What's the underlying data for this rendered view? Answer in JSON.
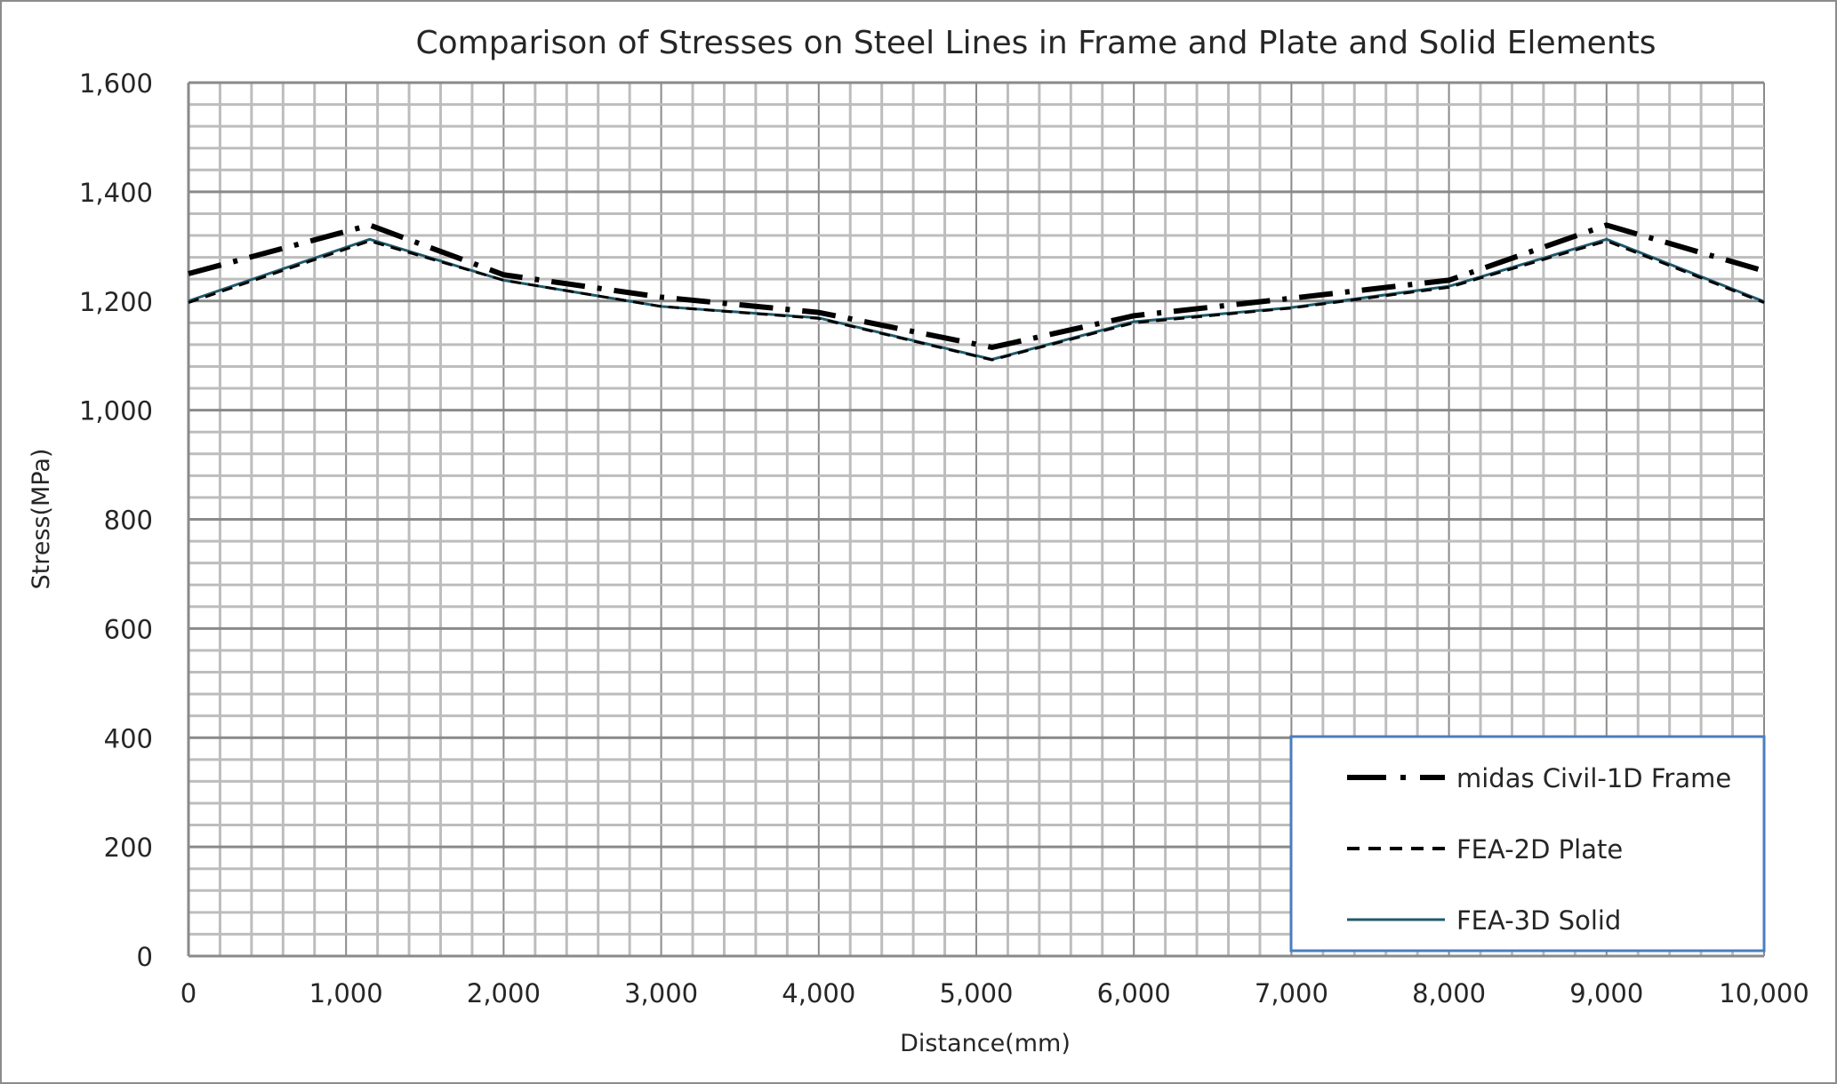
{
  "chart_data": {
    "type": "line",
    "title": "Comparison of Stresses on Steel Lines in Frame and Plate and Solid Elements",
    "xlabel": "Distance(mm)",
    "ylabel": "Stress(MPa)",
    "xlim": [
      0,
      10000
    ],
    "ylim": [
      0,
      1600
    ],
    "xticks": [
      "0",
      "1,000",
      "2,000",
      "3,000",
      "4,000",
      "5,000",
      "6,000",
      "7,000",
      "8,000",
      "9,000",
      "10,000"
    ],
    "yticks": [
      "0",
      "200",
      "400",
      "600",
      "800",
      "1,000",
      "1,200",
      "1,400",
      "1,600"
    ],
    "grid": true,
    "legend_placement": "bottom-right",
    "x": [
      0,
      1150,
      2000,
      3000,
      4000,
      5100,
      6000,
      7000,
      8000,
      9000,
      10000
    ],
    "series": [
      {
        "name": "midas Civil-1D Frame",
        "style": "dash-dot",
        "color": "#000000",
        "values": [
          1250,
          1339,
          1248,
          1207,
          1179,
          1115,
          1173,
          1205,
          1238,
          1339,
          1255
        ]
      },
      {
        "name": "FEA-2D Plate",
        "style": "dashed",
        "color": "#000000",
        "values": [
          1197,
          1310,
          1238,
          1190,
          1168,
          1092,
          1160,
          1187,
          1225,
          1310,
          1197
        ]
      },
      {
        "name": "FEA-3D Solid",
        "style": "solid",
        "color": "#1f5a6b",
        "values": [
          1200,
          1313,
          1238,
          1190,
          1169,
          1093,
          1162,
          1188,
          1227,
          1313,
          1199
        ]
      }
    ]
  }
}
